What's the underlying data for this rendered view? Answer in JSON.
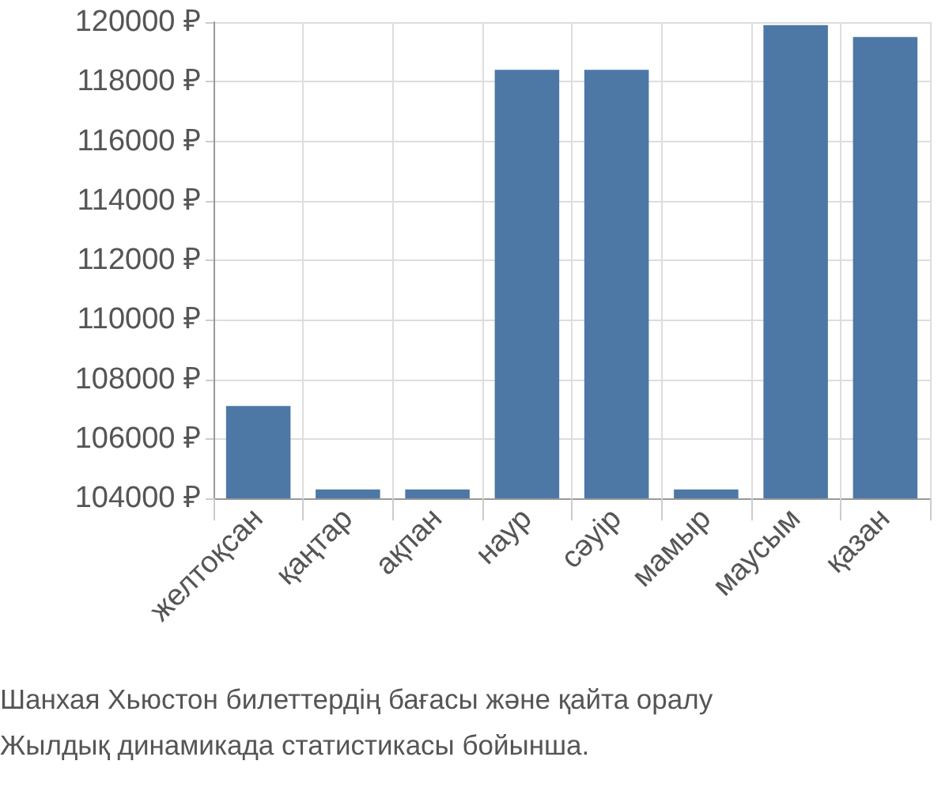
{
  "chart_data": {
    "type": "bar",
    "categories": [
      "желтоқсан",
      "қаңтар",
      "ақпан",
      "наур",
      "сәуір",
      "мамыр",
      "маусым",
      "қазан"
    ],
    "values": [
      107100,
      104300,
      104300,
      118400,
      118400,
      104300,
      119900,
      119500
    ],
    "color": "#4d78a6",
    "ylim": [
      104000,
      120000
    ],
    "yticks": [
      {
        "value": 104000,
        "label": "104000 ₽"
      },
      {
        "value": 106000,
        "label": "106000 ₽"
      },
      {
        "value": 108000,
        "label": "108000 ₽"
      },
      {
        "value": 110000,
        "label": "110000 ₽"
      },
      {
        "value": 112000,
        "label": "112000 ₽"
      },
      {
        "value": 114000,
        "label": "114000 ₽"
      },
      {
        "value": 116000,
        "label": "116000 ₽"
      },
      {
        "value": 118000,
        "label": "118000 ₽"
      },
      {
        "value": 120000,
        "label": "120000 ₽"
      }
    ],
    "grid": true,
    "annotations": [
      "Шанхая Хьюстон билеттердің бағасы және қайта оралу",
      "Жылдық динамикада статистикасы бойынша."
    ]
  }
}
